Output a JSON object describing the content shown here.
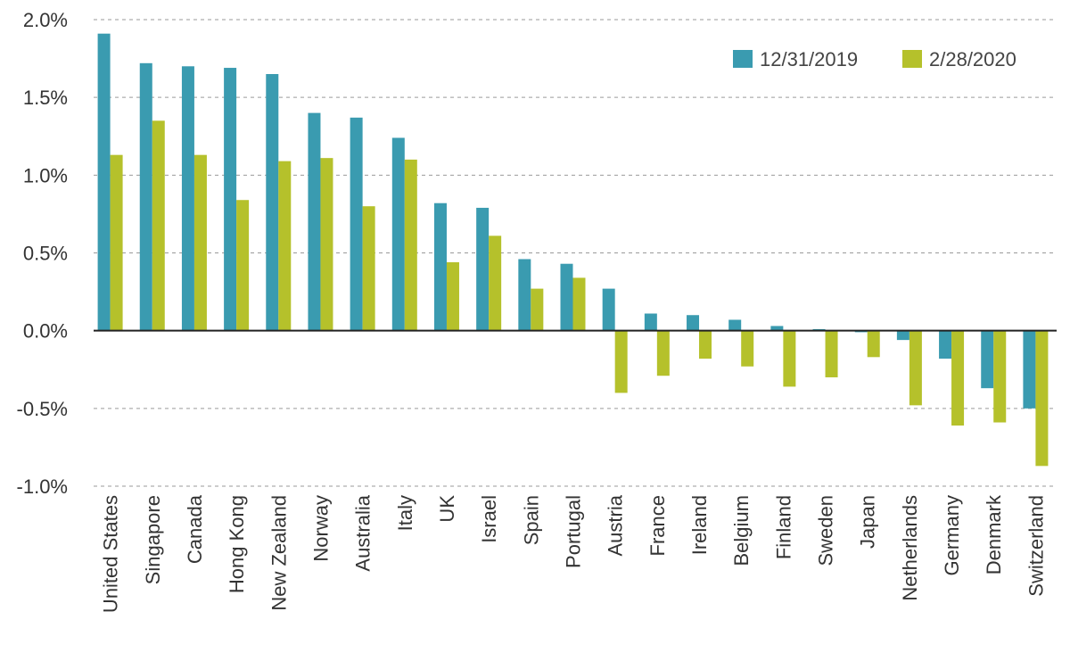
{
  "chart_data": {
    "type": "bar",
    "title": "",
    "xlabel": "",
    "ylabel": "",
    "ylim": [
      -1.0,
      2.0
    ],
    "y_ticks": [
      2.0,
      1.5,
      1.0,
      0.5,
      0.0,
      -0.5,
      -1.0
    ],
    "y_tick_labels": [
      "2.0%",
      "1.5%",
      "1.0%",
      "0.5%",
      "0.0%",
      "-0.5%",
      "-1.0%"
    ],
    "y_unit": "%",
    "grid": true,
    "legend_position": "top-right",
    "categories": [
      "United States",
      "Singapore",
      "Canada",
      "Hong Kong",
      "New Zealand",
      "Norway",
      "Australia",
      "Italy",
      "UK",
      "Israel",
      "Spain",
      "Portugal",
      "Austria",
      "France",
      "Ireland",
      "Belgium",
      "Finland",
      "Sweden",
      "Japan",
      "Netherlands",
      "Germany",
      "Denmark",
      "Switzerland"
    ],
    "series": [
      {
        "name": "12/31/2019",
        "color": "#3a9bb0",
        "values": [
          1.91,
          1.72,
          1.7,
          1.69,
          1.65,
          1.4,
          1.37,
          1.24,
          0.82,
          0.79,
          0.46,
          0.43,
          0.27,
          0.11,
          0.1,
          0.07,
          0.03,
          0.01,
          -0.01,
          -0.06,
          -0.18,
          -0.37,
          -0.5
        ]
      },
      {
        "name": "2/28/2020",
        "color": "#b5c12b",
        "values": [
          1.13,
          1.35,
          1.13,
          0.84,
          1.09,
          1.11,
          0.8,
          1.1,
          0.44,
          0.61,
          0.27,
          0.34,
          -0.4,
          -0.29,
          -0.18,
          -0.23,
          -0.36,
          -0.3,
          -0.17,
          -0.48,
          -0.61,
          -0.59,
          -0.87
        ]
      }
    ]
  }
}
